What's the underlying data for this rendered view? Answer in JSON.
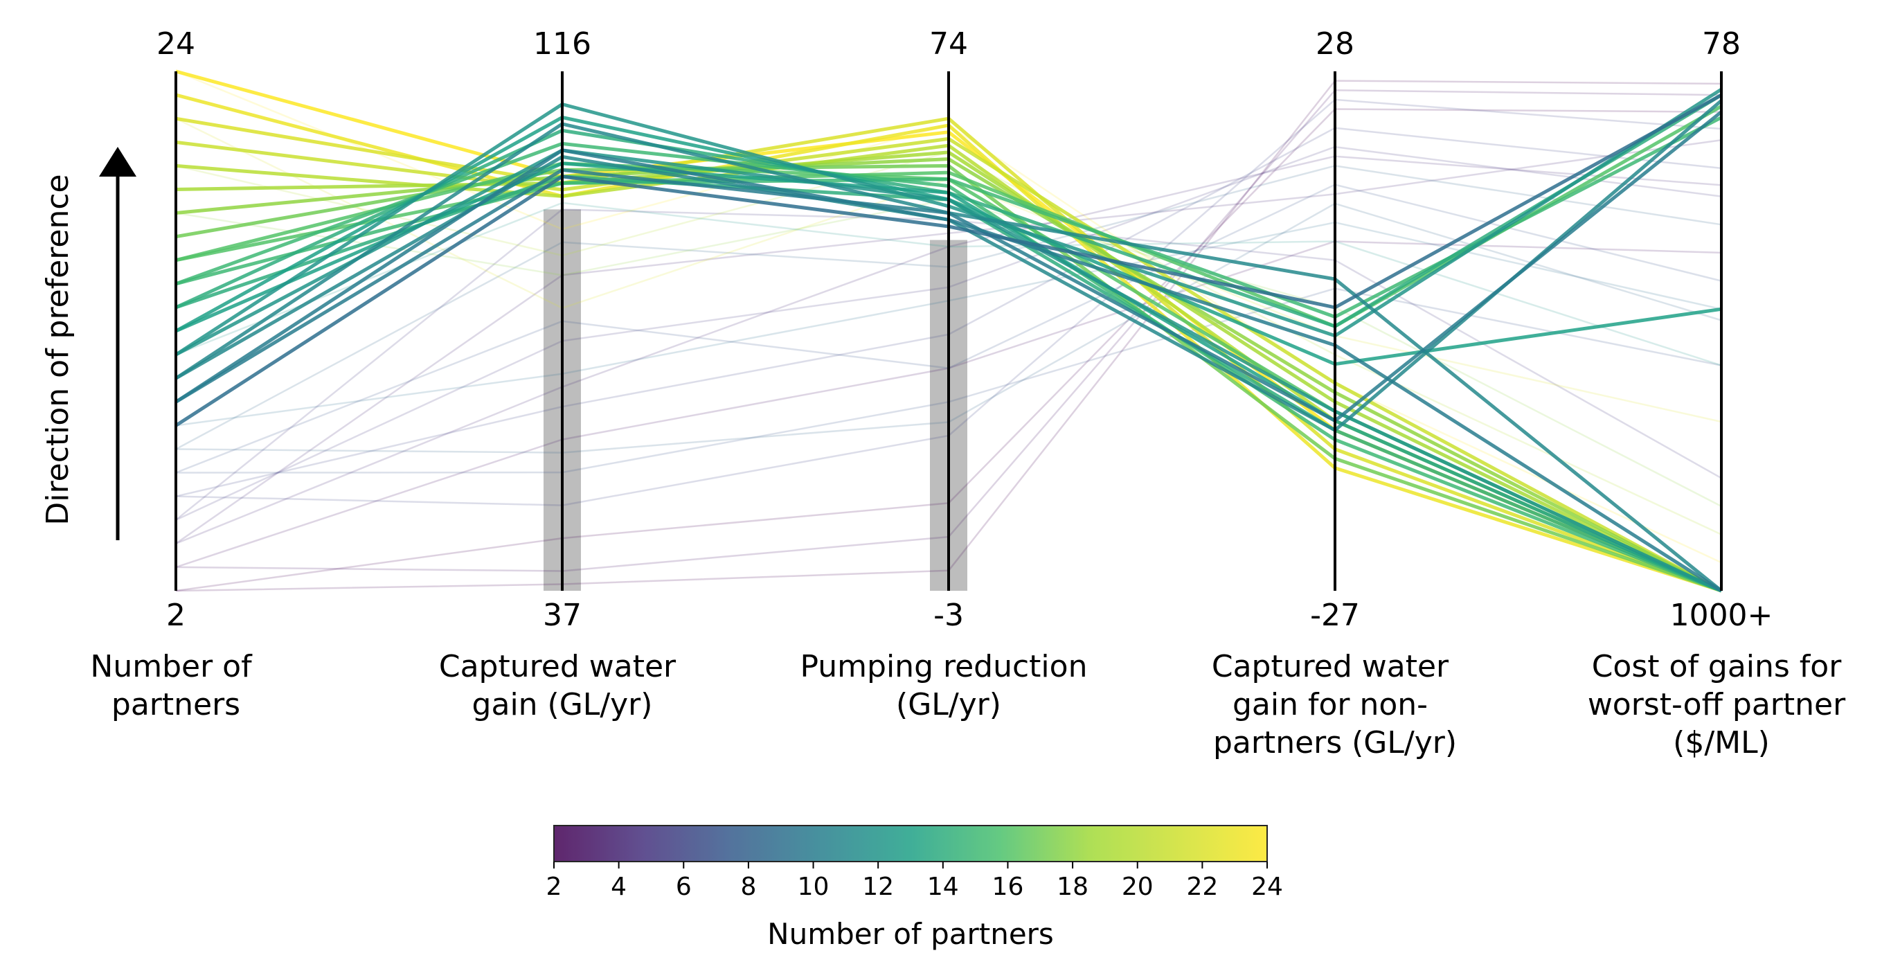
{
  "chart_data": {
    "type": "parallel_coordinates",
    "ylabel": "Direction of preference",
    "axes": [
      {
        "id": "partners",
        "label": [
          "Number of",
          "partners"
        ],
        "top": "24",
        "bottom": "2",
        "min": 2,
        "max": 24
      },
      {
        "id": "captured",
        "label": [
          "Captured water",
          "gain (GL/yr)"
        ],
        "top": "116",
        "bottom": "37",
        "min": 37,
        "max": 116
      },
      {
        "id": "pumping",
        "label": [
          "Pumping reduction",
          "(GL/yr)"
        ],
        "top": "74",
        "bottom": "-3",
        "min": -3,
        "max": 74
      },
      {
        "id": "nonpartners",
        "label": [
          "Captured water",
          "gain for non-",
          "partners (GL/yr)"
        ],
        "top": "28",
        "bottom": "-27",
        "min": -27,
        "max": 28
      },
      {
        "id": "cost",
        "label": [
          "Cost of gains for",
          "worst-off partner",
          "($/ML)"
        ],
        "top": "78",
        "bottom": "1000+",
        "min": 78,
        "max": 1000,
        "reversed": true
      }
    ],
    "constraint_bands": [
      {
        "axis": "captured",
        "from": 37,
        "to": 95
      },
      {
        "axis": "pumping",
        "from": -3,
        "to": 49
      }
    ],
    "colorbar": {
      "label": "Number of partners",
      "colormap": "viridis",
      "min": 2,
      "max": 24,
      "ticks": [
        "2",
        "4",
        "6",
        "8",
        "10",
        "12",
        "14",
        "16",
        "18",
        "20",
        "22",
        "24"
      ]
    },
    "highlighted_solutions": [
      [
        24,
        100,
        65,
        -10,
        1000
      ],
      [
        23,
        97,
        66,
        -14,
        1000
      ],
      [
        22,
        99,
        67,
        -12,
        1000
      ],
      [
        21,
        98,
        64,
        -5,
        1000
      ],
      [
        20,
        97,
        63,
        -9,
        1000
      ],
      [
        19,
        99,
        62,
        -7,
        1000
      ],
      [
        18,
        100,
        61,
        -6,
        1000
      ],
      [
        17,
        101,
        60,
        -13,
        1000
      ],
      [
        16,
        102,
        58,
        -8,
        1000
      ],
      [
        16,
        99,
        59,
        1,
        140
      ],
      [
        15,
        105,
        57,
        -11,
        1000
      ],
      [
        15,
        99,
        58,
        2,
        160
      ],
      [
        14,
        107,
        56,
        1,
        120
      ],
      [
        14,
        100,
        55,
        -10,
        1000
      ],
      [
        13,
        109,
        55,
        -3,
        500
      ],
      [
        13,
        102,
        56,
        -9,
        1000
      ],
      [
        12,
        111,
        54,
        0,
        110
      ],
      [
        12,
        104,
        55,
        -8,
        1000
      ],
      [
        11,
        108,
        53,
        6,
        1000
      ],
      [
        11,
        103,
        52,
        -10,
        130
      ],
      [
        10,
        104,
        52,
        -1,
        1000
      ],
      [
        10,
        101,
        53,
        -9,
        150
      ],
      [
        9,
        100,
        51,
        3,
        120
      ]
    ],
    "background_solutions": [
      [
        3,
        60,
        30,
        10,
        400
      ],
      [
        5,
        75,
        42,
        20,
        300
      ],
      [
        7,
        55,
        25,
        5,
        600
      ],
      [
        4,
        85,
        50,
        15,
        200
      ],
      [
        6,
        65,
        35,
        22,
        250
      ],
      [
        8,
        90,
        45,
        18,
        350
      ],
      [
        2,
        45,
        10,
        24,
        150
      ],
      [
        9,
        70,
        40,
        12,
        500
      ],
      [
        5,
        95,
        52,
        8,
        800
      ],
      [
        6,
        50,
        20,
        25,
        180
      ],
      [
        20,
        88,
        62,
        -2,
        900
      ],
      [
        22,
        80,
        58,
        0,
        700
      ],
      [
        24,
        92,
        66,
        -5,
        950
      ],
      [
        18,
        85,
        55,
        3,
        850
      ],
      [
        3,
        40,
        5,
        26,
        120
      ],
      [
        7,
        78,
        30,
        16,
        450
      ],
      [
        4,
        68,
        48,
        19,
        280
      ],
      [
        12,
        96,
        48,
        10,
        600
      ],
      [
        2,
        38,
        0,
        27,
        100
      ],
      [
        8,
        58,
        22,
        14,
        520
      ]
    ]
  }
}
